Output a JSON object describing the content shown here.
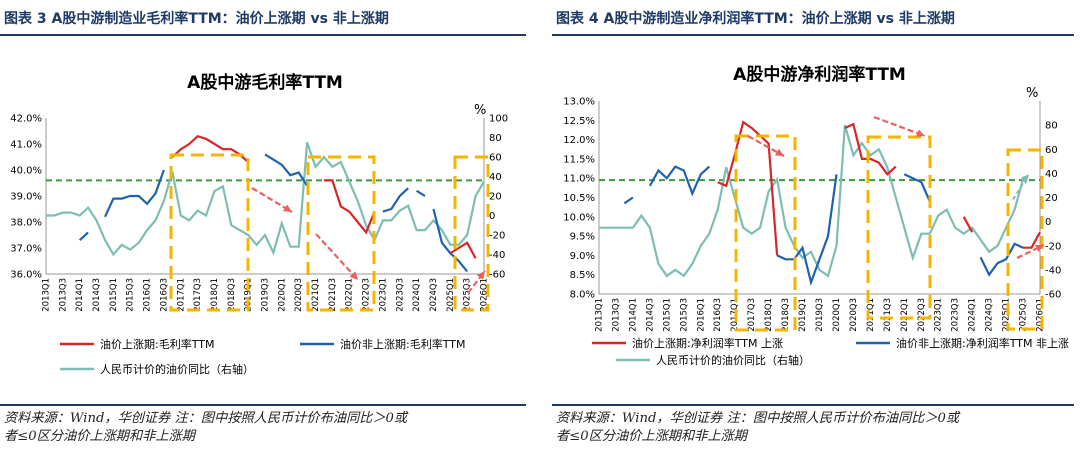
{
  "panels": [
    {
      "figure_title": "图表 3 A股中游制造业毛利率TTM：油价上涨期 vs 非上涨期",
      "source_note_1": "资料来源：Wind，华创证券 注：图中按照人民币计价布油同比＞0或",
      "source_note_2": "者≤0区分油价上涨期和非上涨期",
      "colors": {
        "rise": "#d62728",
        "nonrise": "#1f63ad",
        "oil": "#7dbdb3",
        "mean": "#3a9a3a",
        "box": "#f5b400",
        "arrow": "#e86060"
      }
    },
    {
      "figure_title": "图表 4 A股中游制造业净利润率TTM：油价上涨期 vs 非上涨期",
      "source_note_1": "资料来源：Wind，华创证券 注：图中按照人民币计价布油同比＞0或",
      "source_note_2": "者≤0区分油价上涨期和非上涨期",
      "colors": {
        "rise": "#d62728",
        "nonrise": "#1f63ad",
        "oil": "#7dbdb3",
        "mean": "#3a9a3a",
        "box": "#f5b400",
        "arrow": "#e86060"
      }
    }
  ],
  "chart_data": [
    {
      "type": "line",
      "title": "A股中游毛利率TTM",
      "right_unit": "%",
      "x_tick_labels": [
        "2013Q1",
        "2013Q3",
        "2014Q1",
        "2014Q3",
        "2015Q1",
        "2015Q3",
        "2016Q1",
        "2016Q3",
        "2017Q1",
        "2017Q3",
        "2018Q1",
        "2018Q3",
        "2019Q1",
        "2019Q3",
        "2020Q1",
        "2020Q3",
        "2021Q1",
        "2021Q3",
        "2022Q1",
        "2022Q3",
        "2023Q1",
        "2023Q3",
        "2024Q1",
        "2024Q3",
        "2025Q1",
        "2025Q3",
        "2026Q1"
      ],
      "left_ticks": [
        "36.0%",
        "37.0%",
        "38.0%",
        "39.0%",
        "40.0%",
        "41.0%",
        "42.0%"
      ],
      "left_range": [
        36,
        42
      ],
      "right_ticks": [
        "-60",
        "-40",
        "-20",
        "0",
        "20",
        "40",
        "60",
        "80",
        "100"
      ],
      "right_range": [
        -60,
        100
      ],
      "mean_line": 39.6,
      "legend": [
        {
          "key": "rise",
          "label": "油价上涨期:毛利率TTM"
        },
        {
          "key": "nonrise",
          "label": "油价非上涨期:毛利率TTM"
        },
        {
          "key": "oil",
          "label": "人民币计价的油价同比（右轴）"
        }
      ],
      "rise_segments": [
        [
          [
            15,
            40.5
          ],
          [
            16,
            40.8
          ],
          [
            17,
            41.0
          ],
          [
            18,
            41.3
          ],
          [
            19,
            41.2
          ],
          [
            20,
            41.0
          ],
          [
            21,
            40.8
          ],
          [
            22,
            40.8
          ],
          [
            23,
            40.6
          ],
          [
            24,
            40.3
          ]
        ],
        [
          [
            33,
            39.6
          ],
          [
            34,
            39.6
          ],
          [
            35,
            38.6
          ],
          [
            36,
            38.4
          ],
          [
            37,
            38.0
          ],
          [
            38,
            37.6
          ],
          [
            39,
            38.4
          ]
        ],
        [
          [
            48,
            36.8
          ],
          [
            49,
            37.0
          ],
          [
            50,
            37.2
          ],
          [
            51,
            36.6
          ]
        ]
      ],
      "nonrise_segments": [
        [
          [
            4,
            37.3
          ],
          [
            5,
            37.6
          ]
        ],
        [
          [
            7,
            38.2
          ],
          [
            8,
            38.9
          ],
          [
            9,
            38.9
          ],
          [
            10,
            39.0
          ],
          [
            11,
            39.0
          ],
          [
            12,
            38.7
          ],
          [
            13,
            39.1
          ],
          [
            14,
            40.0
          ]
        ],
        [
          [
            26,
            40.6
          ],
          [
            27,
            40.4
          ],
          [
            28,
            40.2
          ],
          [
            29,
            39.8
          ],
          [
            30,
            39.9
          ],
          [
            31,
            39.4
          ]
        ],
        [
          [
            40,
            38.4
          ],
          [
            41,
            38.5
          ],
          [
            42,
            39.0
          ],
          [
            43,
            39.3
          ]
        ],
        [
          [
            44,
            39.2
          ],
          [
            45,
            39.0
          ]
        ],
        [
          [
            46,
            38.5
          ],
          [
            47,
            37.2
          ],
          [
            48,
            36.8
          ],
          [
            49,
            36.5
          ],
          [
            50,
            36.1
          ]
        ]
      ],
      "oil_yoy": [
        0,
        0,
        3,
        3,
        0,
        8,
        -5,
        -25,
        -40,
        -30,
        -35,
        -28,
        -15,
        -5,
        15,
        45,
        0,
        -5,
        5,
        0,
        25,
        30,
        -10,
        -15,
        -20,
        -30,
        -20,
        -38,
        -8,
        -32,
        -32,
        75,
        50,
        60,
        50,
        55,
        35,
        15,
        -10,
        -25,
        -5,
        -5,
        5,
        10,
        -15,
        -15,
        -5,
        -15,
        -30,
        -30,
        -20,
        20,
        35
      ]
    },
    {
      "type": "line",
      "title": "A股中游净利润率TTM",
      "right_unit": "%",
      "x_tick_labels": [
        "2013Q1",
        "2013Q3",
        "2014Q1",
        "2014Q3",
        "2015Q1",
        "2015Q3",
        "2016Q1",
        "2016Q3",
        "2017Q1",
        "2017Q3",
        "2018Q1",
        "2018Q3",
        "2019Q1",
        "2019Q3",
        "2020Q1",
        "2020Q3",
        "2021Q1",
        "2021Q3",
        "2022Q1",
        "2022Q3",
        "2023Q1",
        "2023Q3",
        "2024Q1",
        "2024Q3",
        "2025Q1",
        "2025Q3",
        "2026Q1"
      ],
      "left_ticks": [
        "8.0%",
        "8.5%",
        "9.0%",
        "9.5%",
        "10.0%",
        "10.5%",
        "11.0%",
        "11.5%",
        "12.0%",
        "12.5%",
        "13.0%"
      ],
      "left_range": [
        8,
        13
      ],
      "right_ticks": [
        "-60",
        "-40",
        "-20",
        "0",
        "20",
        "40",
        "60",
        "80"
      ],
      "right_range": [
        -60,
        100
      ],
      "mean_line": 10.95,
      "legend": [
        {
          "key": "rise",
          "label": "油价上涨期:净利润率TTM 上涨"
        },
        {
          "key": "nonrise",
          "label": "油价非上涨期:净利润率TTM 非上涨"
        },
        {
          "key": "oil",
          "label": "人民币计价的油价同比（右轴）"
        }
      ],
      "rise_segments": [
        [
          [
            14,
            10.9
          ],
          [
            15,
            10.8
          ],
          [
            16,
            11.6
          ],
          [
            17,
            12.45
          ],
          [
            18,
            12.3
          ],
          [
            19,
            12.1
          ],
          [
            20,
            11.9
          ],
          [
            21,
            9.0
          ]
        ],
        [
          [
            29,
            12.3
          ],
          [
            30,
            12.4
          ],
          [
            31,
            11.5
          ],
          [
            32,
            11.5
          ],
          [
            33,
            11.4
          ],
          [
            34,
            11.1
          ],
          [
            35,
            11.3
          ]
        ],
        [
          [
            43,
            10.0
          ],
          [
            44,
            9.6
          ]
        ],
        [
          [
            50,
            9.2
          ],
          [
            51,
            9.2
          ],
          [
            52,
            9.6
          ]
        ]
      ],
      "nonrise_segments": [
        [
          [
            3,
            10.35
          ],
          [
            4,
            10.5
          ]
        ],
        [
          [
            6,
            10.8
          ],
          [
            7,
            11.2
          ],
          [
            8,
            11.0
          ],
          [
            9,
            11.3
          ],
          [
            10,
            11.2
          ],
          [
            11,
            10.6
          ],
          [
            12,
            11.1
          ],
          [
            13,
            11.3
          ]
        ],
        [
          [
            21,
            9.0
          ],
          [
            22,
            8.9
          ],
          [
            23,
            8.9
          ],
          [
            24,
            9.2
          ],
          [
            25,
            8.3
          ],
          [
            26,
            8.9
          ],
          [
            27,
            9.5
          ],
          [
            28,
            11.1
          ]
        ],
        [
          [
            36,
            11.1
          ],
          [
            37,
            11.0
          ],
          [
            38,
            10.9
          ],
          [
            39,
            10.4
          ]
        ],
        [
          [
            45,
            8.95
          ],
          [
            46,
            8.5
          ],
          [
            47,
            8.8
          ],
          [
            48,
            8.9
          ],
          [
            49,
            9.3
          ],
          [
            50,
            9.2
          ]
        ]
      ],
      "oil_yoy": [
        -5,
        -5,
        -5,
        -5,
        -5,
        5,
        -5,
        -35,
        -45,
        -40,
        -45,
        -35,
        -20,
        -10,
        10,
        45,
        20,
        -5,
        -10,
        -5,
        25,
        35,
        -5,
        -20,
        -30,
        -25,
        -40,
        -45,
        -20,
        80,
        55,
        65,
        55,
        60,
        45,
        20,
        -5,
        -30,
        -10,
        -10,
        5,
        10,
        -5,
        -10,
        -5,
        -15,
        -25,
        -20,
        -5,
        10,
        35
      ]
    }
  ]
}
